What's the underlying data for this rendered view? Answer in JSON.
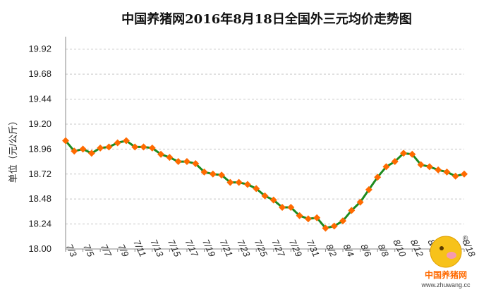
{
  "chart_data": {
    "type": "line",
    "title": "中国养猪网2016年8月18日全国外三元均价走势图",
    "ylabel": "单位（元/公斤）",
    "xlabel": "",
    "ylim": [
      18.0,
      20.04
    ],
    "yticks": [
      "18.00",
      "18.24",
      "18.48",
      "18.72",
      "18.96",
      "19.20",
      "19.44",
      "19.68",
      "19.92"
    ],
    "grid": true,
    "x_tick_labels": [
      "7/3",
      "7/5",
      "7/7",
      "7/9",
      "7/11",
      "7/13",
      "7/15",
      "7/17",
      "7/19",
      "7/21",
      "7/23",
      "7/25",
      "7/27",
      "7/29",
      "7/31",
      "8/2",
      "8/4",
      "8/6",
      "8/8",
      "8/10",
      "8/12",
      "8/14",
      "8/16",
      "8/18"
    ],
    "categories": [
      "7/3",
      "7/4",
      "7/5",
      "7/6",
      "7/7",
      "7/8",
      "7/9",
      "7/10",
      "7/11",
      "7/12",
      "7/13",
      "7/14",
      "7/15",
      "7/16",
      "7/17",
      "7/18",
      "7/19",
      "7/20",
      "7/21",
      "7/22",
      "7/23",
      "7/24",
      "7/25",
      "7/26",
      "7/27",
      "7/28",
      "7/29",
      "7/30",
      "7/31",
      "8/1",
      "8/2",
      "8/3",
      "8/4",
      "8/5",
      "8/6",
      "8/7",
      "8/8",
      "8/9",
      "8/10",
      "8/11",
      "8/12",
      "8/13",
      "8/14",
      "8/15",
      "8/16",
      "8/17",
      "8/18"
    ],
    "series": [
      {
        "values": [
          19.04,
          18.94,
          18.96,
          18.92,
          18.97,
          18.98,
          19.02,
          19.04,
          18.98,
          18.98,
          18.97,
          18.91,
          18.88,
          18.84,
          18.84,
          18.82,
          18.74,
          18.72,
          18.71,
          18.64,
          18.64,
          18.62,
          18.58,
          18.51,
          18.47,
          18.4,
          18.4,
          18.32,
          18.29,
          18.3,
          18.2,
          18.22,
          18.27,
          18.37,
          18.45,
          18.57,
          18.69,
          18.79,
          18.84,
          18.92,
          18.91,
          18.81,
          18.79,
          18.76,
          18.74,
          18.7,
          18.72
        ],
        "line_color": "#1e8a1e",
        "marker_color": "#ff6a00"
      }
    ]
  },
  "watermark": {
    "name": "中国养猪网",
    "url": "www.zhuwang.cc",
    "registered_mark": "®"
  }
}
